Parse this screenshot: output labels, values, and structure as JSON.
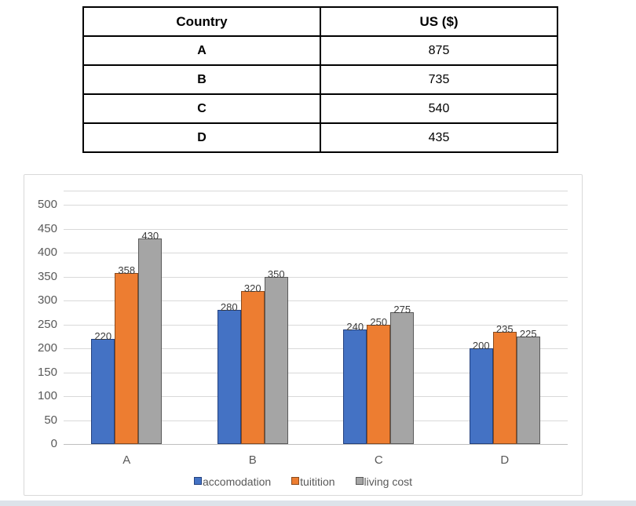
{
  "table": {
    "headers": [
      "Country",
      "US ($)"
    ],
    "rows": [
      {
        "country": "A",
        "value": "875"
      },
      {
        "country": "B",
        "value": "735"
      },
      {
        "country": "C",
        "value": "540"
      },
      {
        "country": "D",
        "value": "435"
      }
    ]
  },
  "chart_data": {
    "type": "bar",
    "title": "",
    "categories": [
      "A",
      "B",
      "C",
      "D"
    ],
    "series": [
      {
        "name": "accomodation",
        "color": "#4472C4",
        "border_color": "#24417e",
        "values": [
          220,
          280,
          240,
          200
        ]
      },
      {
        "name": "tuitition",
        "color": "#ED7D31",
        "border_color": "#8a4a1d",
        "values": [
          358,
          320,
          250,
          235
        ]
      },
      {
        "name": "living cost",
        "color": "#A5A5A5",
        "border_color": "#5a5a5a",
        "values": [
          430,
          350,
          275,
          225
        ]
      }
    ],
    "y_ticks": [
      0,
      50,
      100,
      150,
      200,
      250,
      300,
      350,
      400,
      450,
      500
    ],
    "ylim": [
      0,
      530
    ],
    "grid": true,
    "data_labels": true,
    "legend_position": "bottom",
    "xlabel": "",
    "ylabel": ""
  },
  "colors": {
    "gridline": "#d9d9d9",
    "axis_line": "#bfbfbf",
    "tick_text": "#595959",
    "data_label_text": "#3a3a3a",
    "panel_border": "#d9d9d9",
    "bottom_strip": "#dde3ea"
  }
}
